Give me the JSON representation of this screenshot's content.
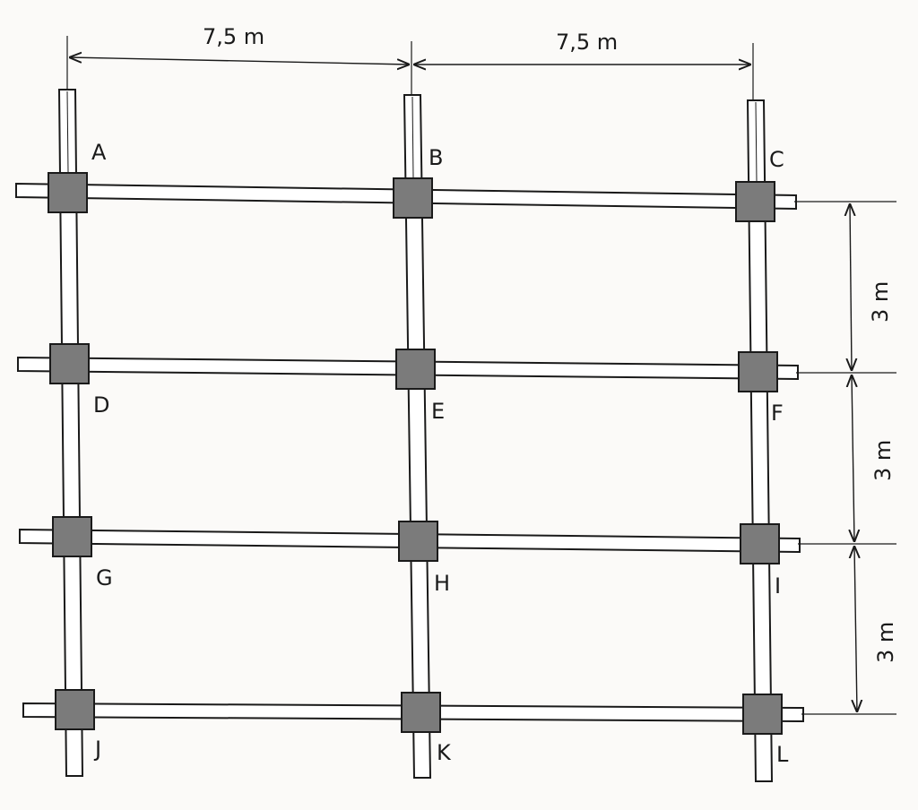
{
  "dimensions": {
    "span_ab": "7,5 m",
    "span_bc": "7,5 m",
    "height_cf": "3 m",
    "height_fi": "3 m",
    "height_il": "3 m"
  },
  "nodes": {
    "A": "A",
    "B": "B",
    "C": "C",
    "D": "D",
    "E": "E",
    "F": "F",
    "G": "G",
    "H": "H",
    "I": "I",
    "J": "J",
    "K": "K",
    "L": "L"
  },
  "colors": {
    "node_fill": "#7b7b7b",
    "member_fill": "#ffffff",
    "line": "#1a1a1a"
  }
}
